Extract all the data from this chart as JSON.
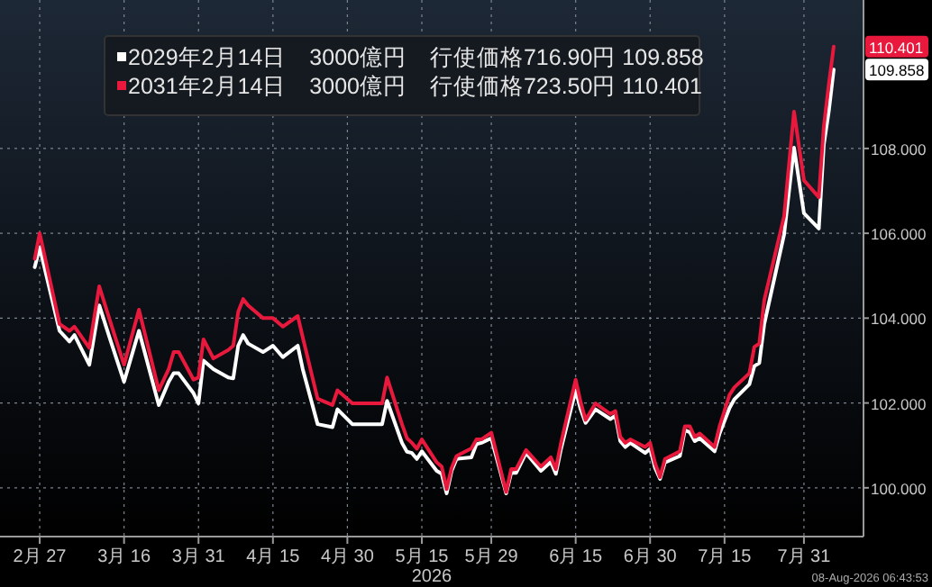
{
  "chart_data": {
    "type": "line",
    "x": [
      "2026-02-26",
      "2026-02-27",
      "2026-03-03",
      "2026-03-05",
      "2026-03-06",
      "2026-03-09",
      "2026-03-11",
      "2026-03-13",
      "2026-03-16",
      "2026-03-19",
      "2026-03-23",
      "2026-03-25",
      "2026-03-26",
      "2026-03-27",
      "2026-03-30",
      "2026-03-31",
      "2026-04-01",
      "2026-04-03",
      "2026-04-06",
      "2026-04-07",
      "2026-04-08",
      "2026-04-09",
      "2026-04-10",
      "2026-04-13",
      "2026-04-15",
      "2026-04-17",
      "2026-04-20",
      "2026-04-21",
      "2026-04-24",
      "2026-04-27",
      "2026-04-28",
      "2026-05-01",
      "2026-05-07",
      "2026-05-08",
      "2026-05-11",
      "2026-05-12",
      "2026-05-13",
      "2026-05-14",
      "2026-05-15",
      "2026-05-18",
      "2026-05-19",
      "2026-05-20",
      "2026-05-21",
      "2026-05-22",
      "2026-05-25",
      "2026-05-26",
      "2026-05-27",
      "2026-05-29",
      "2026-06-01",
      "2026-06-02",
      "2026-06-03",
      "2026-06-05",
      "2026-06-08",
      "2026-06-10",
      "2026-06-11",
      "2026-06-12",
      "2026-06-15",
      "2026-06-16",
      "2026-06-17",
      "2026-06-19",
      "2026-06-22",
      "2026-06-23",
      "2026-06-24",
      "2026-06-25",
      "2026-06-26",
      "2026-06-29",
      "2026-06-30",
      "2026-07-01",
      "2026-07-02",
      "2026-07-03",
      "2026-07-06",
      "2026-07-07",
      "2026-07-08",
      "2026-07-09",
      "2026-07-10",
      "2026-07-13",
      "2026-07-14",
      "2026-07-16",
      "2026-07-17",
      "2026-07-20",
      "2026-07-21",
      "2026-07-22",
      "2026-07-23",
      "2026-07-27",
      "2026-07-29",
      "2026-07-31",
      "2026-08-03",
      "2026-08-04",
      "2026-08-05",
      "2026-08-06"
    ],
    "series": [
      {
        "name": "2029年2月14日　3000億円　行使価格716.90円 109.858",
        "color": "#ffffff",
        "values": [
          105.2,
          105.67,
          103.7,
          103.45,
          103.6,
          102.9,
          104.3,
          103.57,
          102.5,
          103.7,
          101.95,
          102.5,
          102.7,
          102.7,
          102.23,
          101.99,
          103.0,
          102.8,
          102.6,
          102.58,
          103.35,
          103.6,
          103.4,
          103.2,
          103.35,
          103.08,
          103.35,
          102.8,
          101.5,
          101.43,
          101.85,
          101.5,
          101.5,
          102.05,
          101.06,
          100.85,
          100.82,
          100.68,
          100.86,
          100.4,
          100.33,
          99.87,
          100.4,
          100.68,
          100.72,
          101.03,
          101.06,
          101.17,
          99.87,
          100.35,
          100.35,
          100.82,
          100.4,
          100.61,
          100.33,
          100.89,
          102.3,
          101.85,
          101.53,
          101.85,
          101.62,
          101.7,
          101.1,
          100.96,
          101.06,
          100.82,
          100.92,
          100.47,
          100.21,
          100.6,
          100.75,
          101.36,
          101.31,
          101.1,
          101.17,
          100.86,
          101.28,
          101.88,
          102.09,
          102.44,
          102.87,
          102.94,
          103.86,
          105.97,
          108.02,
          106.47,
          106.11,
          108.09,
          108.87,
          109.858
        ]
      },
      {
        "name": "2031年2月14日　3000億円　行使価格723.50円 110.401",
        "color": "#e8193c",
        "values": [
          105.4,
          106.0,
          103.86,
          103.7,
          103.8,
          103.3,
          104.75,
          104.0,
          102.9,
          104.2,
          102.3,
          102.8,
          103.2,
          103.2,
          102.55,
          102.6,
          103.5,
          103.05,
          103.25,
          103.35,
          104.15,
          104.45,
          104.3,
          104.0,
          104.0,
          103.8,
          104.05,
          103.55,
          102.1,
          101.95,
          102.3,
          101.99,
          101.99,
          102.6,
          101.5,
          101.17,
          101.06,
          100.92,
          101.14,
          100.6,
          100.5,
          99.97,
          100.47,
          100.75,
          100.93,
          101.14,
          101.14,
          101.3,
          99.9,
          100.44,
          100.44,
          100.89,
          100.5,
          100.72,
          100.44,
          101.03,
          102.55,
          102.02,
          101.6,
          101.99,
          101.74,
          101.81,
          101.2,
          101.06,
          101.14,
          100.96,
          101.06,
          100.58,
          100.25,
          100.68,
          100.86,
          101.45,
          101.45,
          101.2,
          101.28,
          100.96,
          101.45,
          102.19,
          102.37,
          102.7,
          103.32,
          103.4,
          104.42,
          106.4,
          108.87,
          107.25,
          106.85,
          108.52,
          109.5,
          110.401
        ]
      }
    ],
    "xlim": [
      "2026-02-19",
      "2026-08-12"
    ],
    "ylim": [
      98.85,
      111.5
    ],
    "xticks": [
      {
        "value": "2026-02-27",
        "label": "2月 27"
      },
      {
        "value": "2026-03-16",
        "label": "3月 16"
      },
      {
        "value": "2026-03-31",
        "label": "3月 31"
      },
      {
        "value": "2026-04-15",
        "label": "4月 15"
      },
      {
        "value": "2026-04-30",
        "label": "4月 30"
      },
      {
        "value": "2026-05-15",
        "label": "5月 15"
      },
      {
        "value": "2026-05-29",
        "label": "5月 29"
      },
      {
        "value": "2026-06-15",
        "label": "6月 15"
      },
      {
        "value": "2026-06-30",
        "label": "6月 30"
      },
      {
        "value": "2026-07-15",
        "label": "7月 15"
      },
      {
        "value": "2026-07-31",
        "label": "7月 31"
      }
    ],
    "yticks": [
      {
        "value": 100,
        "label": "100.000"
      },
      {
        "value": 102,
        "label": "102.000"
      },
      {
        "value": 104,
        "label": "104.000"
      },
      {
        "value": 106,
        "label": "106.000"
      },
      {
        "value": 108,
        "label": "108.000"
      }
    ],
    "xlabel": "2026",
    "annotations": [
      {
        "text": "110.401",
        "x": "2026-08-06",
        "y": 110.401
      },
      {
        "text": "109.858",
        "x": "2026-08-06",
        "y": 109.858
      },
      "08-Aug-2026 06:43:53"
    ],
    "grid": true,
    "legend": "top left"
  }
}
